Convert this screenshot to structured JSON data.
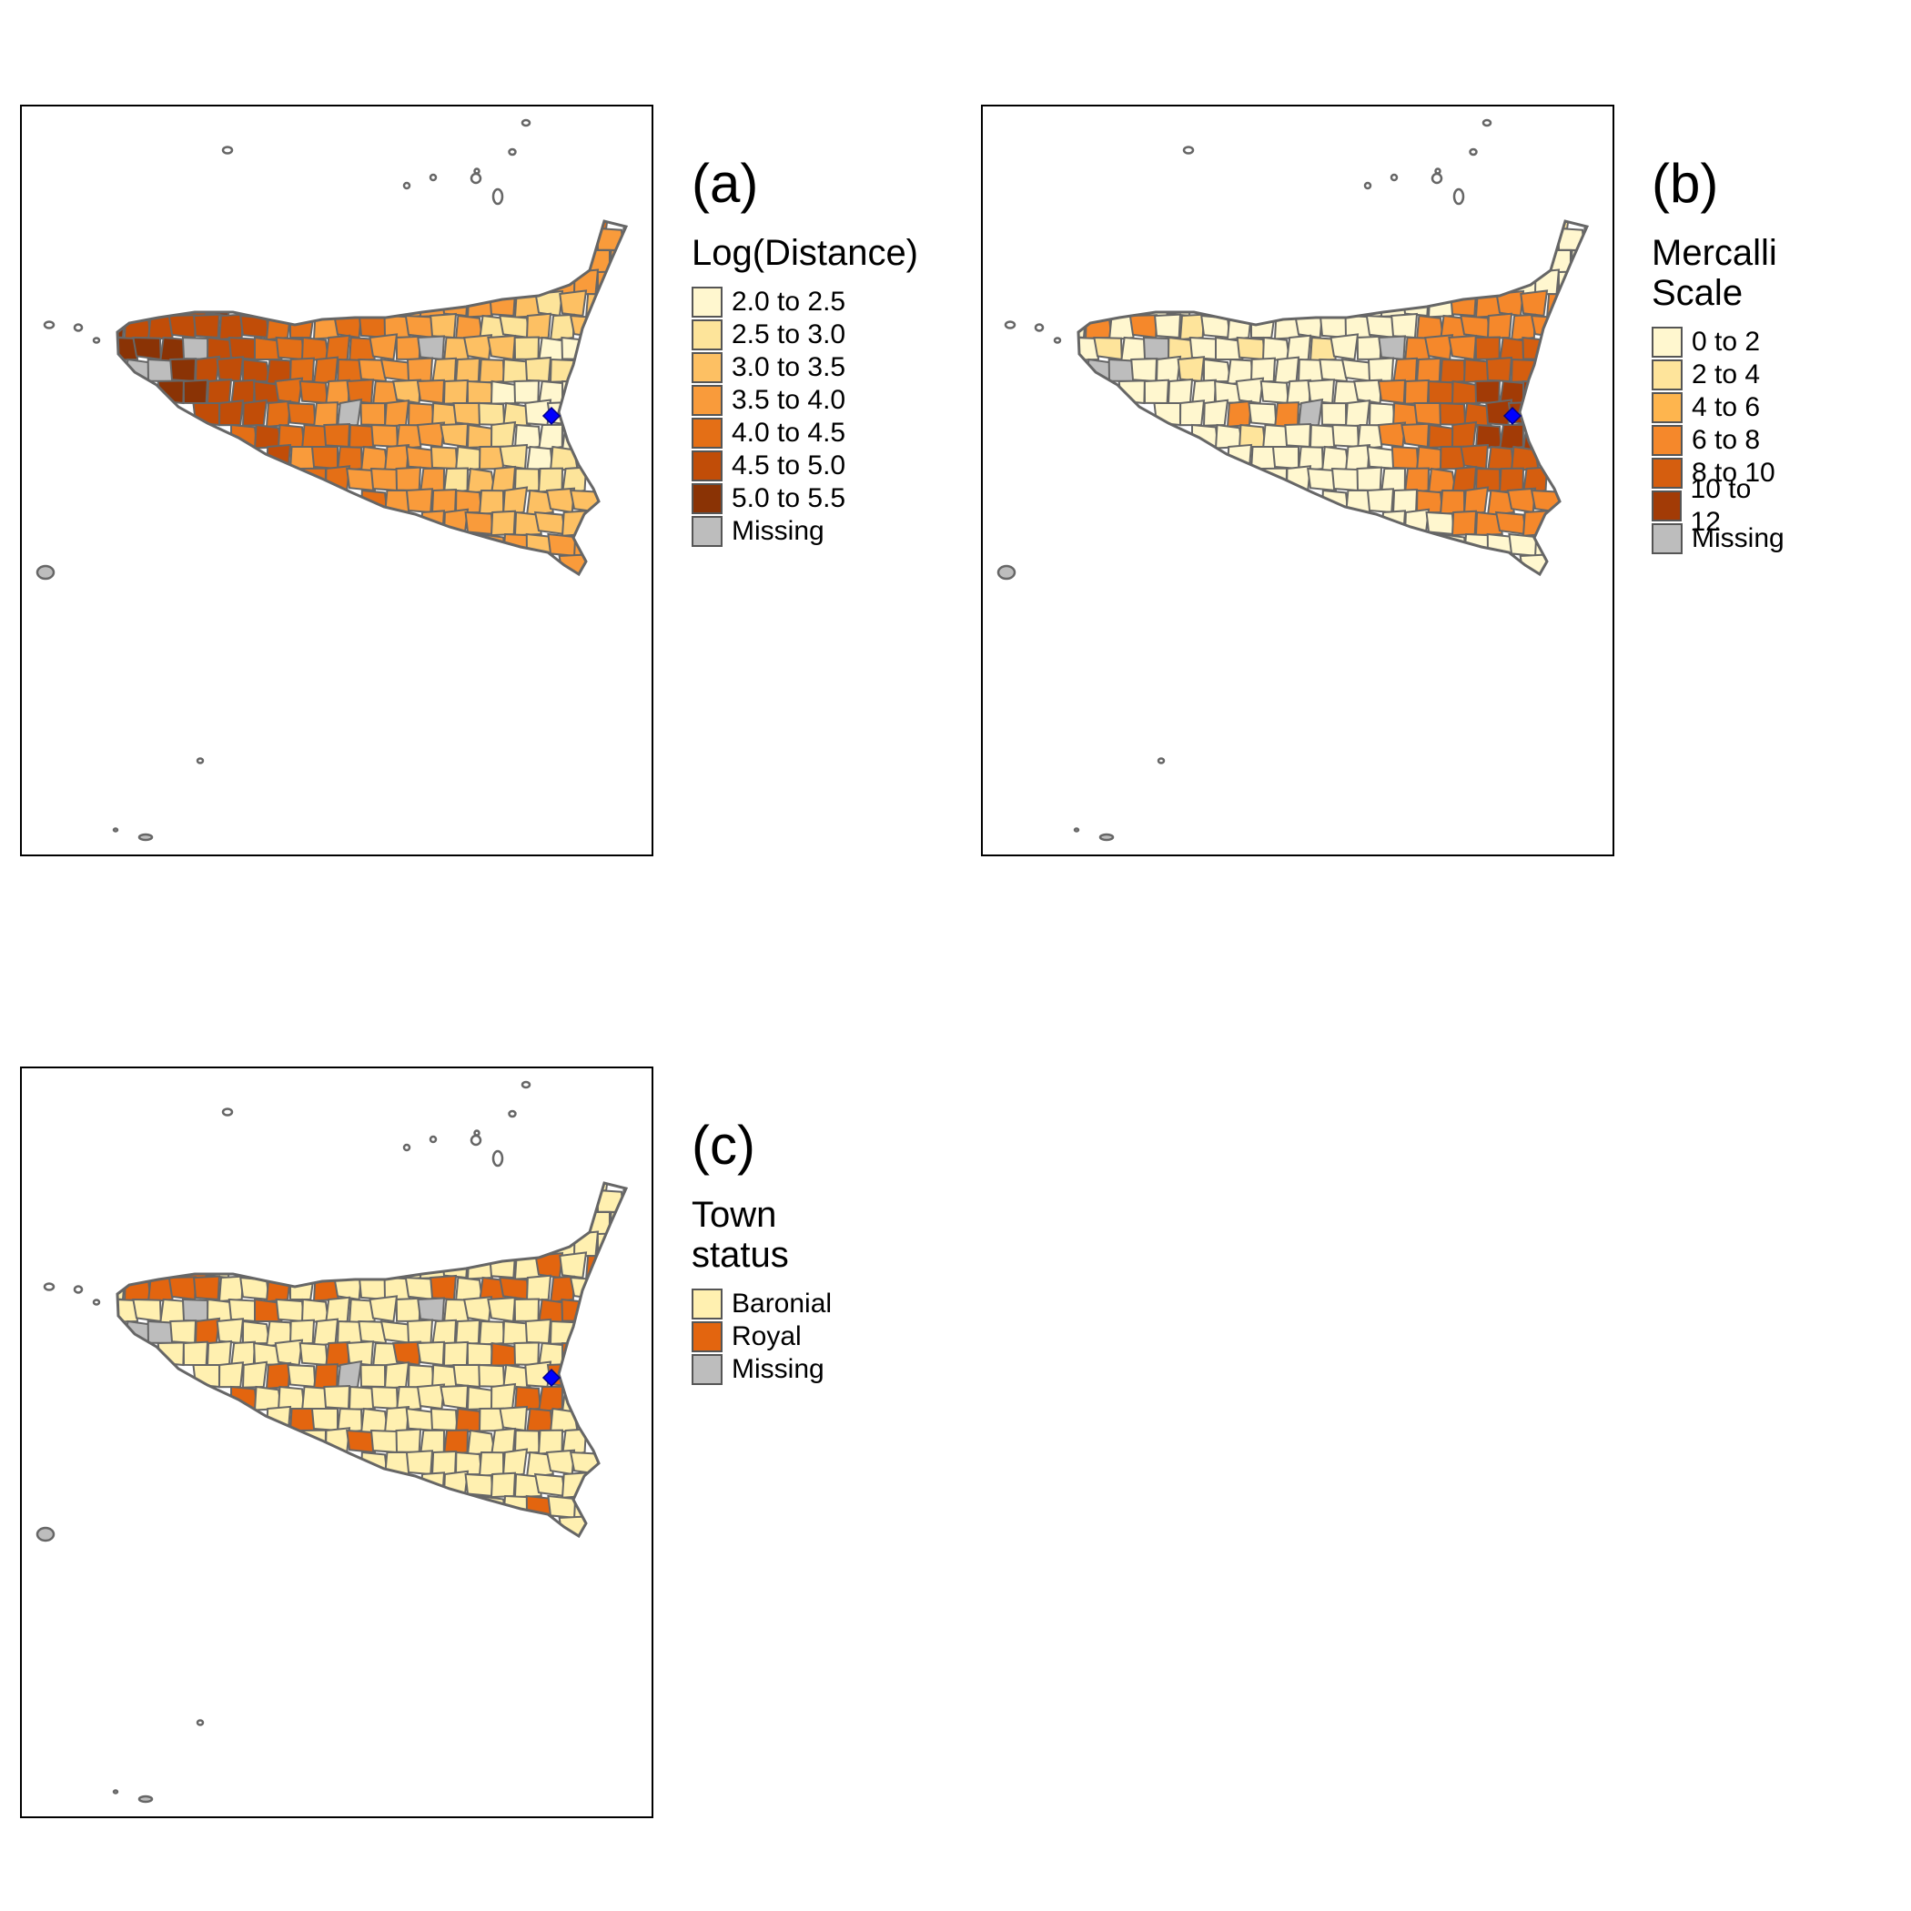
{
  "outline_color": "#666666",
  "marker_color": "#0000ff",
  "panels": [
    {
      "label": "(a)",
      "legend_title": "Log(Distance)",
      "legend": [
        {
          "label": "2.0 to 2.5",
          "color": "#fff7cf"
        },
        {
          "label": "2.5 to 3.0",
          "color": "#fde49a"
        },
        {
          "label": "3.0 to 3.5",
          "color": "#fdc063"
        },
        {
          "label": "3.5 to 4.0",
          "color": "#f99b3b"
        },
        {
          "label": "4.0 to 4.5",
          "color": "#e46f16"
        },
        {
          "label": "4.5 to 5.0",
          "color": "#c14d08"
        },
        {
          "label": "5.0 to 5.5",
          "color": "#8a3305"
        },
        {
          "label": "Missing",
          "color": "#bdbdbd"
        }
      ]
    },
    {
      "label": "(b)",
      "legend_title": "Mercalli Scale",
      "legend": [
        {
          "label": "0 to 2",
          "color": "#fff7cf"
        },
        {
          "label": "2 to 4",
          "color": "#fee49b"
        },
        {
          "label": "4 to 6",
          "color": "#feb54e"
        },
        {
          "label": "6 to 8",
          "color": "#f5882b"
        },
        {
          "label": "8 to 10",
          "color": "#d55e0f"
        },
        {
          "label": "10 to 12",
          "color": "#a23b06"
        },
        {
          "label": "Missing",
          "color": "#bdbdbd"
        }
      ]
    },
    {
      "label": "(c)",
      "legend_title": "Town status",
      "legend": [
        {
          "label": "Baronial",
          "color": "#fff0b0"
        },
        {
          "label": "Royal",
          "color": "#e3650f"
        },
        {
          "label": "Missing",
          "color": "#bdbdbd"
        }
      ]
    }
  ]
}
